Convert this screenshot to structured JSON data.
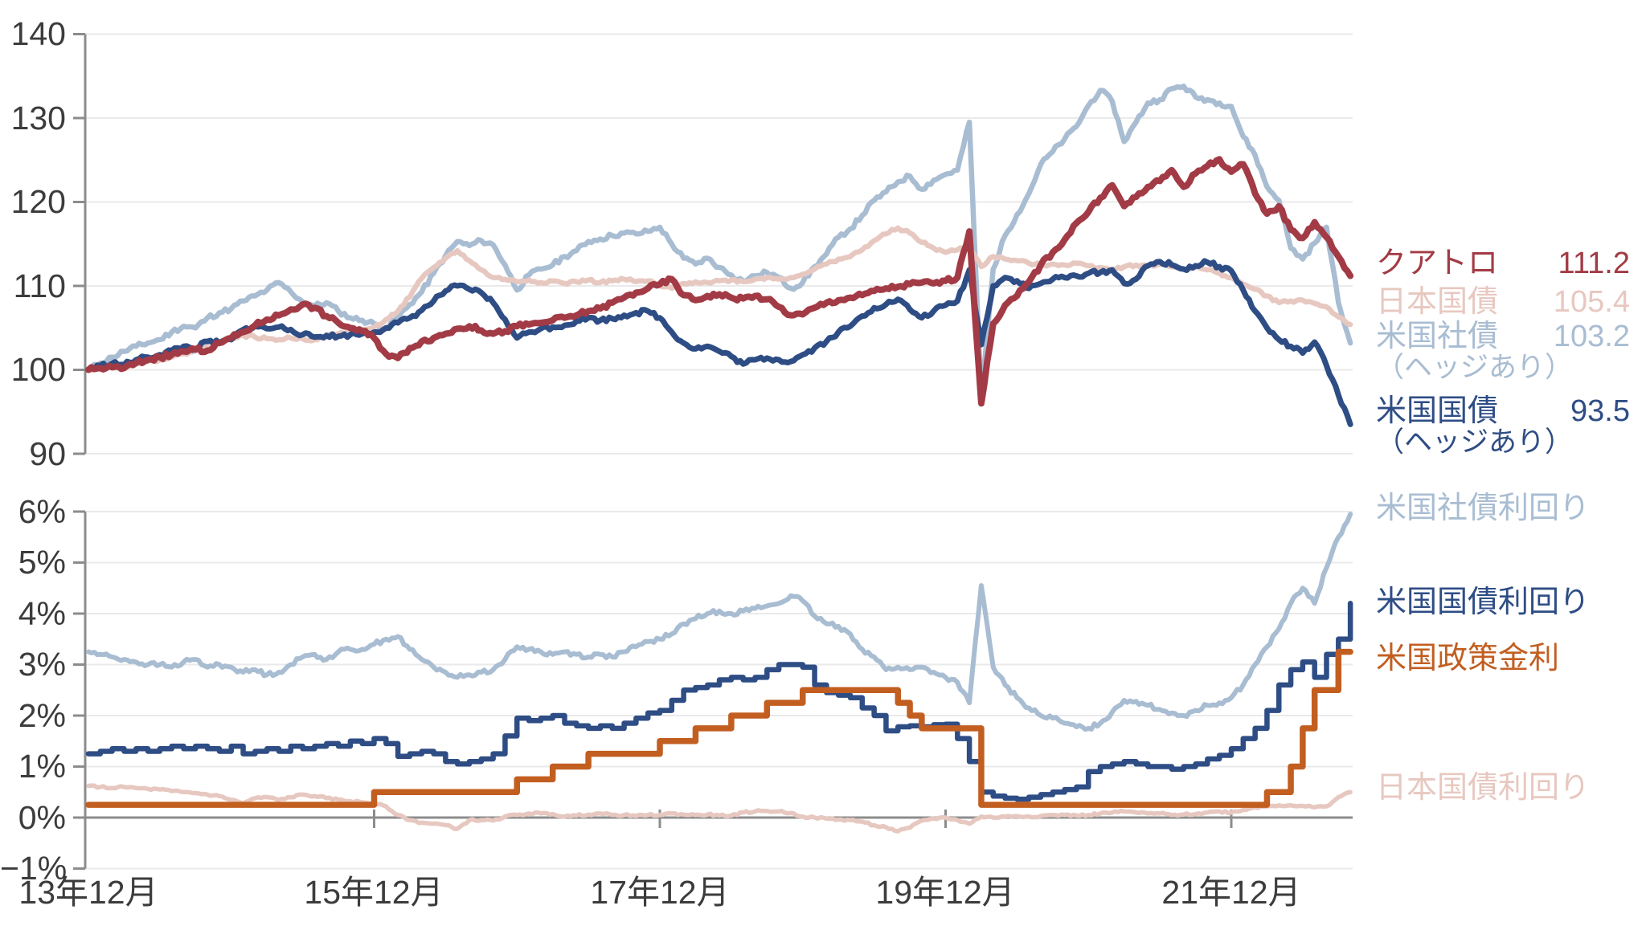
{
  "colors": {
    "quatro": "#A23B45",
    "jgb": "#E7C8C0",
    "us_corp": "#A9BDD2",
    "us_tsy": "#2E4D85",
    "policy": "#C25E20",
    "axis_text": "#3C3C3C",
    "axis_line": "#8C8C8C",
    "grid": "#EAEAEA"
  },
  "axes": {
    "top_yticks": [
      "140",
      "130",
      "120",
      "110",
      "100",
      "90"
    ],
    "bottom_yticks": [
      "6%",
      "5%",
      "4%",
      "3%",
      "2%",
      "1%",
      "0%",
      "−1%"
    ],
    "xticks": [
      "13年12月",
      "15年12月",
      "17年12月",
      "19年12月",
      "21年12月"
    ]
  },
  "legend_top": [
    {
      "label": "クアトロ",
      "value": "111.2",
      "color": "#A23B45"
    },
    {
      "label": "日本国債",
      "value": "105.4",
      "color": "#E7C8C0"
    },
    {
      "label": "米国社債",
      "value": "103.2",
      "color": "#A9BDD2"
    },
    {
      "label": "（ヘッジあり）",
      "value": "",
      "color": "#A9BDD2"
    },
    {
      "label": "米国国債",
      "value": "93.5",
      "color": "#2E4D85"
    },
    {
      "label": "（ヘッジあり）",
      "value": "",
      "color": "#2E4D85"
    }
  ],
  "legend_bottom": [
    {
      "label": "米国社債利回り",
      "color": "#A9BDD2"
    },
    {
      "label": "米国国債利回り",
      "color": "#2E4D85"
    },
    {
      "label": "米国政策金利",
      "color": "#C25E20"
    },
    {
      "label": "日本国債利回り",
      "color": "#E7C8C0"
    }
  ],
  "chart_data": [
    {
      "type": "line",
      "panel": "price-index",
      "x_start": "2013-12",
      "x_end": "2022-10",
      "x_interval": "month",
      "xticks": [
        "13年12月",
        "15年12月",
        "17年12月",
        "19年12月",
        "21年12月"
      ],
      "ylim": [
        90,
        140
      ],
      "yticks": [
        140,
        130,
        120,
        110,
        100,
        90
      ],
      "grid": true,
      "legend_position": "right",
      "series": [
        {
          "name": "米国社債（ヘッジあり）",
          "final_value": 103.2,
          "color": "#A9BDD2",
          "values": [
            100,
            100.8,
            101.5,
            102.2,
            102.8,
            103.2,
            103.6,
            104.5,
            105.2,
            105.0,
            106.2,
            106.8,
            107.3,
            108.2,
            108.8,
            109.5,
            110.4,
            109.3,
            108.1,
            107.6,
            108.0,
            107.0,
            106.2,
            105.9,
            105.5,
            104.9,
            106.3,
            107.8,
            109.3,
            111.5,
            113.6,
            115.3,
            114.8,
            115.4,
            114.9,
            112.5,
            109.5,
            111.3,
            112.0,
            112.5,
            113.5,
            114.2,
            115.3,
            115.6,
            116.0,
            116.3,
            116.2,
            116.5,
            117.0,
            115.0,
            113.3,
            112.6,
            113.3,
            112.2,
            111.3,
            110.6,
            111.2,
            111.6,
            111.0,
            109.7,
            110.4,
            112.3,
            113.8,
            115.8,
            116.8,
            118.4,
            120.2,
            121.2,
            122.4,
            123.1,
            121.5,
            122.6,
            123.3,
            123.8,
            129.5,
            96.4,
            112.0,
            116.0,
            118.5,
            121.0,
            124.5,
            126.0,
            127.5,
            129.0,
            131.5,
            133.3,
            132.0,
            127.2,
            129.5,
            131.8,
            132.2,
            133.5,
            133.8,
            132.5,
            132.2,
            131.8,
            131.4,
            127.8,
            125.6,
            121.8,
            120.2,
            114.5,
            113.2,
            115.1,
            117.0,
            108.0,
            103.2
          ]
        },
        {
          "name": "日本国債",
          "final_value": 105.4,
          "color": "#E7C8C0",
          "values": [
            100,
            100.3,
            100.5,
            100.4,
            100.8,
            101.0,
            101.2,
            101.5,
            101.9,
            102.3,
            102.9,
            103.3,
            103.8,
            104.1,
            103.9,
            103.7,
            103.6,
            103.8,
            103.7,
            103.6,
            104.0,
            104.3,
            104.5,
            104.8,
            105.0,
            106.0,
            107.0,
            108.7,
            110.9,
            112.2,
            113.3,
            114.2,
            113.0,
            111.9,
            111.0,
            110.8,
            110.5,
            110.7,
            110.4,
            110.6,
            110.3,
            110.5,
            110.7,
            110.4,
            110.6,
            110.8,
            110.5,
            110.6,
            110.0,
            109.7,
            110.3,
            110.5,
            110.4,
            110.6,
            110.7,
            110.5,
            110.8,
            111.0,
            110.8,
            111.0,
            111.4,
            112.0,
            112.6,
            113.2,
            113.5,
            114.3,
            115.4,
            116.2,
            116.9,
            116.3,
            115.2,
            114.5,
            114.0,
            114.3,
            114.8,
            112.3,
            113.5,
            113.2,
            113.0,
            112.7,
            112.5,
            112.6,
            112.5,
            112.7,
            112.4,
            112.2,
            112.0,
            112.3,
            112.5,
            112.4,
            112.6,
            112.3,
            112.0,
            112.2,
            111.9,
            111.5,
            111.0,
            110.2,
            109.6,
            108.8,
            108.0,
            108.2,
            108.3,
            107.9,
            107.5,
            106.3,
            105.4
          ]
        },
        {
          "name": "米国国債（ヘッジあり）",
          "final_value": 93.5,
          "color": "#2E4D85",
          "values": [
            100,
            100.5,
            100.8,
            100.6,
            101.2,
            101.5,
            101.8,
            102.3,
            102.8,
            102.5,
            103.4,
            103.2,
            103.6,
            104.8,
            105.2,
            104.9,
            105.1,
            104.8,
            104.2,
            103.9,
            104.1,
            104.0,
            104.2,
            104.3,
            104.5,
            105.0,
            105.6,
            106.2,
            107.1,
            108.2,
            109.4,
            110.0,
            109.6,
            109.2,
            108.0,
            106.0,
            103.8,
            104.5,
            104.9,
            105.1,
            105.3,
            105.8,
            106.2,
            105.9,
            106.1,
            106.5,
            106.8,
            107.0,
            106.2,
            104.5,
            103.2,
            102.5,
            102.8,
            102.2,
            101.6,
            100.7,
            101.2,
            101.4,
            101.2,
            101.0,
            101.8,
            102.6,
            103.4,
            104.5,
            105.2,
            106.4,
            107.4,
            107.8,
            108.4,
            107.2,
            106.2,
            107.0,
            107.7,
            108.2,
            111.9,
            103.0,
            110.0,
            111.0,
            110.6,
            109.7,
            110.3,
            110.8,
            111.0,
            111.2,
            111.5,
            111.6,
            111.9,
            110.3,
            110.8,
            112.4,
            112.9,
            112.5,
            112.0,
            112.4,
            112.8,
            112.3,
            111.8,
            109.5,
            107.0,
            105.0,
            103.6,
            102.8,
            102.0,
            103.3,
            100.5,
            97.0,
            93.5
          ]
        },
        {
          "name": "クアトロ",
          "final_value": 111.2,
          "color": "#A23B45",
          "values": [
            100,
            100.2,
            100.3,
            100.2,
            100.8,
            101.2,
            101.5,
            101.8,
            102.2,
            102.4,
            102.3,
            103.2,
            103.8,
            104.5,
            105.3,
            106.0,
            106.5,
            107.2,
            107.8,
            107.4,
            106.4,
            105.6,
            105.0,
            104.6,
            103.8,
            101.9,
            101.4,
            102.6,
            103.4,
            103.8,
            104.3,
            104.9,
            105.2,
            104.7,
            104.3,
            104.6,
            105.2,
            105.4,
            105.6,
            105.9,
            106.2,
            106.5,
            107.0,
            107.3,
            108.0,
            108.6,
            109.2,
            109.7,
            110.2,
            110.8,
            108.9,
            108.3,
            108.8,
            109.0,
            108.6,
            108.5,
            108.8,
            108.4,
            107.5,
            106.5,
            106.6,
            107.4,
            108.0,
            108.3,
            108.6,
            108.9,
            109.4,
            109.7,
            109.9,
            110.2,
            110.4,
            110.3,
            110.6,
            111.0,
            116.5,
            96.0,
            105.5,
            107.7,
            108.8,
            110.5,
            112.5,
            114.0,
            115.5,
            117.5,
            118.8,
            120.5,
            122.0,
            119.5,
            120.6,
            121.8,
            122.5,
            123.8,
            121.8,
            123.4,
            124.3,
            125.1,
            123.6,
            124.5,
            121.0,
            118.6,
            119.5,
            116.7,
            115.7,
            117.6,
            115.8,
            113.5,
            111.2
          ]
        }
      ]
    },
    {
      "type": "line",
      "panel": "yield",
      "x_start": "2013-12",
      "x_end": "2022-10",
      "x_interval": "month",
      "xticks": [
        "13年12月",
        "15年12月",
        "17年12月",
        "19年12月",
        "21年12月"
      ],
      "ylim": [
        -1,
        6
      ],
      "yticks": [
        6,
        5,
        4,
        3,
        2,
        1,
        0,
        -1
      ],
      "unit": "%",
      "grid": true,
      "zero_line": true,
      "legend_position": "right",
      "series": [
        {
          "name": "米国社債利回り",
          "final_value": 5.95,
          "color": "#A9BDD2",
          "values": [
            3.25,
            3.2,
            3.15,
            3.1,
            3.05,
            3.0,
            3.0,
            2.95,
            3.05,
            3.1,
            2.95,
            3.0,
            2.95,
            2.85,
            2.9,
            2.8,
            2.85,
            3.0,
            3.15,
            3.2,
            3.1,
            3.25,
            3.3,
            3.3,
            3.4,
            3.5,
            3.55,
            3.3,
            3.1,
            2.95,
            2.85,
            2.75,
            2.8,
            2.85,
            2.9,
            3.1,
            3.35,
            3.3,
            3.25,
            3.2,
            3.25,
            3.2,
            3.15,
            3.2,
            3.15,
            3.25,
            3.35,
            3.45,
            3.5,
            3.6,
            3.8,
            3.9,
            4.0,
            4.05,
            4.0,
            4.05,
            4.1,
            4.15,
            4.2,
            4.35,
            4.25,
            3.95,
            3.8,
            3.75,
            3.6,
            3.3,
            3.15,
            2.9,
            2.95,
            2.9,
            2.95,
            2.85,
            2.75,
            2.65,
            2.25,
            4.55,
            2.95,
            2.6,
            2.35,
            2.15,
            2.0,
            1.95,
            1.85,
            1.78,
            1.75,
            1.85,
            2.07,
            2.3,
            2.28,
            2.2,
            2.12,
            2.05,
            2.0,
            2.1,
            2.2,
            2.25,
            2.35,
            2.6,
            3.0,
            3.35,
            3.7,
            4.2,
            4.5,
            4.2,
            4.9,
            5.5,
            5.95
          ]
        },
        {
          "name": "日本国債利回り",
          "final_value": 0.5,
          "color": "#E7C8C0",
          "values": [
            0.62,
            0.6,
            0.58,
            0.6,
            0.58,
            0.56,
            0.55,
            0.52,
            0.5,
            0.48,
            0.45,
            0.42,
            0.35,
            0.28,
            0.38,
            0.4,
            0.35,
            0.4,
            0.45,
            0.42,
            0.38,
            0.35,
            0.32,
            0.3,
            0.28,
            0.22,
            0.05,
            -0.05,
            -0.1,
            -0.12,
            -0.15,
            -0.22,
            -0.05,
            -0.05,
            -0.06,
            0.02,
            0.05,
            0.08,
            0.08,
            0.07,
            0.02,
            0.04,
            0.06,
            0.08,
            0.05,
            0.05,
            0.03,
            0.05,
            0.05,
            0.08,
            0.06,
            0.05,
            0.06,
            0.04,
            0.04,
            0.1,
            0.12,
            0.13,
            0.12,
            0.09,
            0.02,
            0.0,
            -0.02,
            -0.04,
            -0.05,
            -0.08,
            -0.15,
            -0.19,
            -0.27,
            -0.2,
            -0.06,
            -0.02,
            0.0,
            -0.05,
            -0.12,
            0.02,
            0.0,
            0.02,
            0.03,
            0.02,
            0.03,
            0.05,
            0.05,
            0.04,
            0.05,
            0.08,
            0.1,
            0.12,
            0.1,
            0.08,
            0.08,
            0.05,
            0.06,
            0.07,
            0.1,
            0.12,
            0.1,
            0.15,
            0.2,
            0.22,
            0.24,
            0.24,
            0.23,
            0.2,
            0.22,
            0.4,
            0.5
          ]
        },
        {
          "name": "米国国債利回り",
          "final_value": 4.2,
          "color": "#2E4D85",
          "step": true,
          "values": [
            1.25,
            1.3,
            1.35,
            1.3,
            1.35,
            1.3,
            1.35,
            1.4,
            1.35,
            1.4,
            1.35,
            1.3,
            1.4,
            1.25,
            1.3,
            1.35,
            1.3,
            1.4,
            1.35,
            1.4,
            1.45,
            1.4,
            1.5,
            1.45,
            1.55,
            1.45,
            1.2,
            1.25,
            1.3,
            1.25,
            1.1,
            1.05,
            1.1,
            1.15,
            1.25,
            1.6,
            1.95,
            1.9,
            1.95,
            2.0,
            1.85,
            1.8,
            1.75,
            1.8,
            1.75,
            1.85,
            1.95,
            2.05,
            2.1,
            2.3,
            2.5,
            2.55,
            2.6,
            2.7,
            2.75,
            2.7,
            2.75,
            2.9,
            3.0,
            3.0,
            2.95,
            2.6,
            2.45,
            2.4,
            2.35,
            2.15,
            2.0,
            1.7,
            1.78,
            1.8,
            1.78,
            1.82,
            1.83,
            1.55,
            1.1,
            0.5,
            0.42,
            0.38,
            0.36,
            0.4,
            0.45,
            0.5,
            0.55,
            0.6,
            0.9,
            1.0,
            1.05,
            1.1,
            1.05,
            1.0,
            1.0,
            0.95,
            1.0,
            1.05,
            1.15,
            1.22,
            1.35,
            1.55,
            1.75,
            2.1,
            2.6,
            2.9,
            3.05,
            2.75,
            3.2,
            3.5,
            4.2
          ]
        },
        {
          "name": "米国政策金利",
          "final_value": 3.25,
          "color": "#C25E20",
          "step": true,
          "values": [
            0.25,
            0.25,
            0.25,
            0.25,
            0.25,
            0.25,
            0.25,
            0.25,
            0.25,
            0.25,
            0.25,
            0.25,
            0.25,
            0.25,
            0.25,
            0.25,
            0.25,
            0.25,
            0.25,
            0.25,
            0.25,
            0.25,
            0.25,
            0.25,
            0.5,
            0.5,
            0.5,
            0.5,
            0.5,
            0.5,
            0.5,
            0.5,
            0.5,
            0.5,
            0.5,
            0.5,
            0.75,
            0.75,
            0.75,
            1.0,
            1.0,
            1.0,
            1.25,
            1.25,
            1.25,
            1.25,
            1.25,
            1.25,
            1.5,
            1.5,
            1.5,
            1.75,
            1.75,
            1.75,
            2.0,
            2.0,
            2.0,
            2.25,
            2.25,
            2.25,
            2.5,
            2.5,
            2.5,
            2.5,
            2.5,
            2.5,
            2.5,
            2.5,
            2.25,
            2.0,
            1.75,
            1.75,
            1.75,
            1.75,
            1.75,
            0.25,
            0.25,
            0.25,
            0.25,
            0.25,
            0.25,
            0.25,
            0.25,
            0.25,
            0.25,
            0.25,
            0.25,
            0.25,
            0.25,
            0.25,
            0.25,
            0.25,
            0.25,
            0.25,
            0.25,
            0.25,
            0.25,
            0.25,
            0.25,
            0.5,
            0.5,
            1.0,
            1.75,
            2.5,
            2.5,
            3.25,
            3.25
          ]
        }
      ]
    }
  ]
}
